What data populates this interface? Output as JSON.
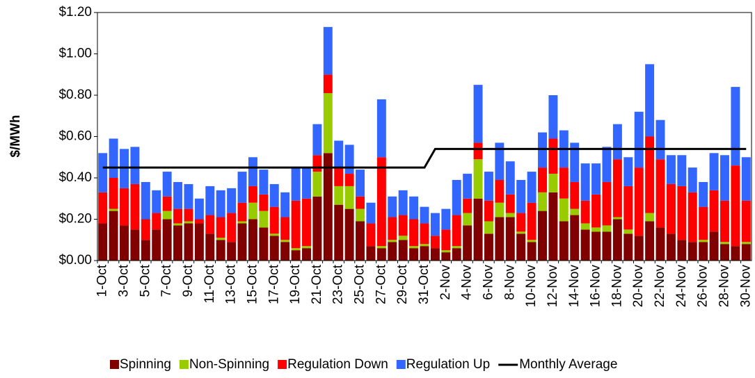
{
  "chart_data": {
    "type": "bar",
    "stacked": true,
    "y_label": "$/MWh",
    "categories": [
      "1-Oct",
      null,
      "3-Oct",
      null,
      "5-Oct",
      null,
      "7-Oct",
      null,
      "9-Oct",
      null,
      "11-Oct",
      null,
      "13-Oct",
      null,
      "15-Oct",
      null,
      "17-Oct",
      null,
      "19-Oct",
      null,
      "21-Oct",
      null,
      "23-Oct",
      null,
      "25-Oct",
      null,
      "27-Oct",
      null,
      "29-Oct",
      null,
      "31-Oct",
      null,
      "2-Nov",
      null,
      "4-Nov",
      null,
      "6-Nov",
      null,
      "8-Nov",
      null,
      "10-Nov",
      null,
      "12-Nov",
      null,
      "14-Nov",
      null,
      "16-Nov",
      null,
      "18-Nov",
      null,
      "20-Nov",
      null,
      "22-Nov",
      null,
      "24-Nov",
      null,
      "26-Nov",
      null,
      "28-Nov",
      null,
      "30-Nov"
    ],
    "series": [
      {
        "name": "Spinning",
        "color": "#800000",
        "values": [
          0.18,
          0.24,
          0.17,
          0.15,
          0.1,
          0.15,
          0.2,
          0.17,
          0.18,
          0.18,
          0.13,
          0.1,
          0.09,
          0.18,
          0.2,
          0.16,
          0.12,
          0.09,
          0.05,
          0.06,
          0.31,
          0.52,
          0.27,
          0.25,
          0.19,
          0.07,
          0.06,
          0.09,
          0.1,
          0.06,
          0.07,
          0.06,
          0.04,
          0.06,
          0.17,
          0.3,
          0.13,
          0.21,
          0.21,
          0.13,
          0.09,
          0.24,
          0.33,
          0.19,
          0.22,
          0.15,
          0.14,
          0.14,
          0.2,
          0.13,
          0.12,
          0.19,
          0.16,
          0.13,
          0.1,
          0.09,
          0.09,
          0.14,
          0.08,
          0.07,
          0.08
        ]
      },
      {
        "name": "Non-Spinning",
        "color": "#99cc00",
        "values": [
          0,
          0.01,
          0,
          0,
          0,
          0,
          0.04,
          0.01,
          0.01,
          0,
          0,
          0.01,
          0,
          0.01,
          0.08,
          0.08,
          0.01,
          0.01,
          0.01,
          0.01,
          0.12,
          0.29,
          0.09,
          0.11,
          0.06,
          0,
          0.01,
          0.01,
          0.02,
          0.01,
          0.01,
          0,
          0.01,
          0.01,
          0.06,
          0.19,
          0.06,
          0.07,
          0.02,
          0.01,
          0.01,
          0.09,
          0.09,
          0.11,
          0.03,
          0.03,
          0.02,
          0.03,
          0.01,
          0.02,
          0,
          0.04,
          0,
          0,
          0,
          0,
          0.01,
          0,
          0.01,
          0,
          0.01
        ]
      },
      {
        "name": "Regulation Down",
        "color": "#ff0000",
        "values": [
          0.15,
          0.15,
          0.18,
          0.22,
          0.1,
          0.08,
          0.07,
          0.07,
          0.06,
          0.02,
          0.09,
          0.1,
          0.14,
          0.09,
          0.08,
          0.08,
          0.13,
          0.11,
          0.23,
          0.23,
          0.08,
          0.09,
          0.09,
          0.06,
          0.06,
          0.11,
          0.43,
          0.11,
          0.1,
          0.13,
          0.1,
          0.06,
          0.1,
          0.15,
          0.07,
          0.08,
          0.1,
          0.11,
          0.09,
          0.09,
          0.18,
          0.12,
          0.17,
          0.15,
          0.13,
          0.11,
          0.16,
          0.21,
          0.28,
          0.21,
          0.33,
          0.37,
          0.33,
          0.24,
          0.26,
          0.24,
          0.16,
          0.2,
          0.2,
          0.39,
          0.2
        ]
      },
      {
        "name": "Regulation Up",
        "color": "#3366ff",
        "values": [
          0.19,
          0.19,
          0.19,
          0.18,
          0.18,
          0.11,
          0.12,
          0.13,
          0.12,
          0.1,
          0.14,
          0.13,
          0.12,
          0.15,
          0.14,
          0.12,
          0.11,
          0.12,
          0.16,
          0.15,
          0.15,
          0.23,
          0.13,
          0.14,
          0.13,
          0.1,
          0.28,
          0.1,
          0.12,
          0.11,
          0.08,
          0.11,
          0.1,
          0.17,
          0.12,
          0.28,
          0.14,
          0.18,
          0.16,
          0.16,
          0.15,
          0.17,
          0.21,
          0.18,
          0.19,
          0.18,
          0.15,
          0.17,
          0.17,
          0.14,
          0.27,
          0.35,
          0.19,
          0.14,
          0.15,
          0.12,
          0.12,
          0.18,
          0.22,
          0.38,
          0.21
        ]
      },
      {
        "name": "Monthly Average",
        "color": "#000000",
        "type": "line",
        "values": [
          0.45,
          0.45,
          0.45,
          0.45,
          0.45,
          0.45,
          0.45,
          0.45,
          0.45,
          0.45,
          0.45,
          0.45,
          0.45,
          0.45,
          0.45,
          0.45,
          0.45,
          0.45,
          0.45,
          0.45,
          0.45,
          0.45,
          0.45,
          0.45,
          0.45,
          0.45,
          0.45,
          0.45,
          0.45,
          0.45,
          0.45,
          0.54,
          0.54,
          0.54,
          0.54,
          0.54,
          0.54,
          0.54,
          0.54,
          0.54,
          0.54,
          0.54,
          0.54,
          0.54,
          0.54,
          0.54,
          0.54,
          0.54,
          0.54,
          0.54,
          0.54,
          0.54,
          0.54,
          0.54,
          0.54,
          0.54,
          0.54,
          0.54,
          0.54,
          0.54,
          0.54
        ]
      }
    ],
    "ylim": [
      0,
      1.2
    ],
    "yticks": [
      {
        "value": 0,
        "label": "$0.00"
      },
      {
        "value": 0.2,
        "label": "$0.20"
      },
      {
        "value": 0.4,
        "label": "$0.40"
      },
      {
        "value": 0.6,
        "label": "$0.60"
      },
      {
        "value": 0.8,
        "label": "$0.80"
      },
      {
        "value": 1.0,
        "label": "$1.00"
      },
      {
        "value": 1.2,
        "label": "$1.20"
      }
    ],
    "legend": "bottom"
  }
}
